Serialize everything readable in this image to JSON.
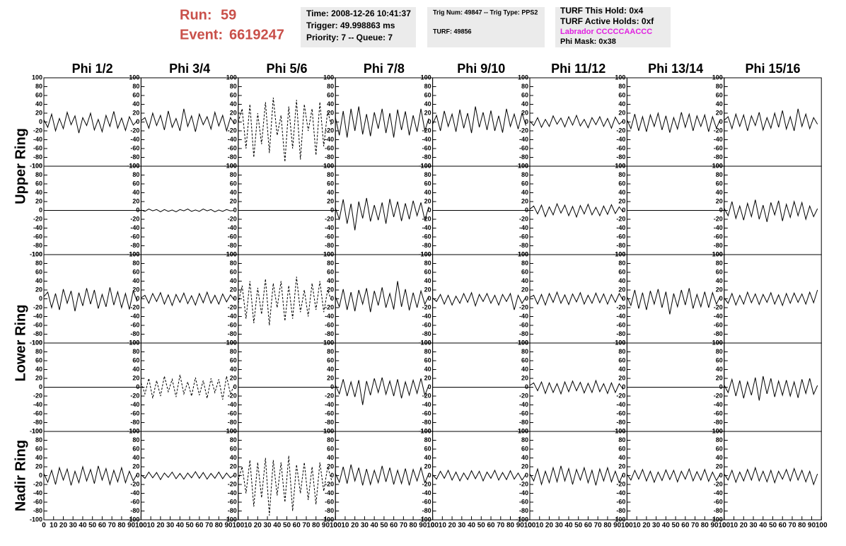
{
  "header": {
    "run_label": "Run:",
    "run": "59",
    "event_label": "Event:",
    "event": "6619247",
    "box1": [
      "Time: 2008-12-26 10:41:37",
      "Trigger: 49.998863 ms",
      "Priority: 7 -- Queue: 7"
    ],
    "box2": [
      "Trig Num: 49847 -- Trig Type: PPS2",
      "TURF: 49856"
    ],
    "box3": [
      "TURF This Hold: 0x4",
      "TURF Active Holds: 0xf",
      "Labrador CCCCCAACCC",
      "Phi Mask: 0x38"
    ]
  },
  "chart_data": {
    "type": "line",
    "column_titles": [
      "Phi 1/2",
      "Phi 3/4",
      "Phi 5/6",
      "Phi 7/8",
      "Phi 9/10",
      "Phi 11/12",
      "Phi 13/14",
      "Phi 15/16"
    ],
    "row_titles": [
      "Upper Ring",
      "Lower Ring",
      "Nadir Ring"
    ],
    "xlim": [
      0,
      100
    ],
    "ylim": [
      -100,
      100
    ],
    "xticks": [
      0,
      10,
      20,
      30,
      40,
      50,
      60,
      70,
      80,
      90,
      100
    ],
    "yticks": [
      -100,
      -80,
      -60,
      -40,
      -20,
      0,
      20,
      40,
      60,
      80,
      100
    ],
    "x": [
      0,
      4,
      8,
      12,
      16,
      20,
      24,
      28,
      32,
      36,
      40,
      44,
      48,
      52,
      56,
      60,
      64,
      68,
      72,
      76,
      80,
      84,
      88,
      92,
      96
    ],
    "panels": [
      {
        "dashed": false,
        "values": [
          5,
          -12,
          18,
          -20,
          8,
          -15,
          22,
          -6,
          14,
          -25,
          10,
          -8,
          20,
          -18,
          6,
          -22,
          15,
          -10,
          24,
          -14,
          9,
          -19,
          12,
          -7,
          3
        ]
      },
      {
        "dashed": false,
        "values": [
          3,
          10,
          -14,
          20,
          -8,
          15,
          -18,
          25,
          -12,
          8,
          -20,
          30,
          -10,
          14,
          -22,
          18,
          -6,
          12,
          -16,
          22,
          -9,
          15,
          -20,
          10,
          -5
        ]
      },
      {
        "dashed": true,
        "values": [
          0,
          30,
          -60,
          40,
          -80,
          20,
          -50,
          45,
          -70,
          55,
          -30,
          15,
          -90,
          35,
          -60,
          50,
          -85,
          40,
          -20,
          30,
          -75,
          45,
          -55,
          25,
          -10
        ]
      },
      {
        "dashed": false,
        "values": [
          10,
          -30,
          25,
          -35,
          30,
          -20,
          35,
          -28,
          18,
          -32,
          22,
          -15,
          30,
          -25,
          20,
          -35,
          28,
          -18,
          24,
          -30,
          15,
          -22,
          30,
          -20,
          8
        ]
      },
      {
        "dashed": false,
        "values": [
          -5,
          15,
          -20,
          25,
          -10,
          18,
          -22,
          28,
          -14,
          20,
          -25,
          35,
          -12,
          22,
          -18,
          26,
          -20,
          14,
          -24,
          30,
          -10,
          18,
          -16,
          20,
          -8
        ]
      },
      {
        "dashed": false,
        "values": [
          2,
          -8,
          10,
          -12,
          6,
          -10,
          14,
          -5,
          9,
          -11,
          12,
          -7,
          15,
          -9,
          6,
          -13,
          10,
          -6,
          12,
          -10,
          8,
          -14,
          11,
          -5,
          3
        ]
      },
      {
        "dashed": false,
        "values": [
          5,
          -15,
          18,
          -20,
          12,
          -22,
          16,
          -10,
          20,
          -18,
          14,
          -24,
          10,
          -16,
          22,
          -12,
          18,
          -20,
          14,
          -10,
          16,
          -22,
          12,
          -14,
          6
        ]
      },
      {
        "dashed": false,
        "values": [
          4,
          12,
          -15,
          18,
          -10,
          16,
          -20,
          14,
          -8,
          22,
          -18,
          10,
          -14,
          20,
          -12,
          26,
          -16,
          12,
          -20,
          30,
          -10,
          18,
          -15,
          10,
          -5
        ]
      },
      {
        "dashed": false,
        "values": []
      },
      {
        "dashed": false,
        "values": [
          1,
          -2,
          3,
          -1,
          2,
          -3,
          2,
          -2,
          1,
          -3,
          2,
          -1,
          3,
          -2,
          1,
          -2,
          3,
          -1,
          2,
          -3,
          1,
          -2,
          2,
          -1,
          0
        ]
      },
      {
        "dashed": false,
        "values": []
      },
      {
        "dashed": false,
        "values": [
          5,
          -20,
          25,
          -30,
          15,
          -45,
          20,
          -18,
          28,
          -25,
          12,
          -22,
          18,
          -30,
          26,
          -15,
          20,
          -24,
          16,
          -20,
          22,
          -12,
          18,
          -22,
          8
        ]
      },
      {
        "dashed": false,
        "values": []
      },
      {
        "dashed": false,
        "values": [
          3,
          10,
          -8,
          12,
          -14,
          8,
          -10,
          15,
          -6,
          12,
          -12,
          9,
          -15,
          11,
          -8,
          14,
          -10,
          7,
          -12,
          10,
          -9,
          13,
          -7,
          8,
          -4
        ]
      },
      {
        "dashed": false,
        "values": []
      },
      {
        "dashed": false,
        "values": [
          5,
          -12,
          20,
          -18,
          10,
          -22,
          16,
          -14,
          24,
          -20,
          12,
          -26,
          18,
          -10,
          22,
          -24,
          14,
          -16,
          20,
          -12,
          18,
          -20,
          10,
          -14,
          4
        ]
      },
      {
        "dashed": false,
        "values": [
          5,
          15,
          -20,
          12,
          -25,
          22,
          -10,
          18,
          -28,
          14,
          -16,
          24,
          -12,
          20,
          -22,
          10,
          -18,
          26,
          -14,
          16,
          -20,
          12,
          -24,
          18,
          -6
        ]
      },
      {
        "dashed": false,
        "values": [
          2,
          8,
          -10,
          12,
          -6,
          14,
          -12,
          9,
          -15,
          10,
          -8,
          13,
          -11,
          7,
          -14,
          12,
          -9,
          15,
          -10,
          8,
          -12,
          11,
          -7,
          9,
          -3
        ]
      },
      {
        "dashed": true,
        "values": [
          -10,
          30,
          -45,
          40,
          -55,
          25,
          -35,
          45,
          -60,
          35,
          -20,
          40,
          -50,
          30,
          -45,
          50,
          -30,
          20,
          -40,
          35,
          -25,
          40,
          -30,
          20,
          -5
        ]
      },
      {
        "dashed": false,
        "values": [
          5,
          -18,
          22,
          -25,
          15,
          -28,
          20,
          -12,
          24,
          -30,
          18,
          -15,
          26,
          -20,
          12,
          -24,
          40,
          -18,
          22,
          -26,
          14,
          -20,
          18,
          -12,
          6
        ]
      },
      {
        "dashed": false,
        "values": [
          2,
          -6,
          10,
          -12,
          8,
          -14,
          6,
          -10,
          12,
          -8,
          14,
          -16,
          10,
          -6,
          12,
          -10,
          8,
          -14,
          10,
          -6,
          12,
          -25,
          8,
          -10,
          4
        ]
      },
      {
        "dashed": false,
        "values": [
          3,
          8,
          -12,
          10,
          -14,
          12,
          -8,
          15,
          -10,
          9,
          -13,
          11,
          -7,
          14,
          -12,
          8,
          -10,
          13,
          -9,
          11,
          -12,
          10,
          -8,
          12,
          -4
        ]
      },
      {
        "dashed": false,
        "values": [
          5,
          -15,
          20,
          -22,
          14,
          -25,
          18,
          -12,
          22,
          -20,
          16,
          -35,
          12,
          -18,
          20,
          -14,
          24,
          -22,
          10,
          -18,
          16,
          -20,
          14,
          -12,
          6
        ]
      },
      {
        "dashed": false,
        "values": [
          2,
          -10,
          12,
          -14,
          8,
          -12,
          15,
          -9,
          11,
          -13,
          10,
          -8,
          14,
          -12,
          9,
          -15,
          12,
          -10,
          13,
          -8,
          11,
          -12,
          15,
          -9,
          20
        ]
      },
      {
        "dashed": false,
        "values": []
      },
      {
        "dashed": true,
        "values": [
          10,
          -15,
          20,
          -25,
          15,
          -20,
          25,
          -10,
          18,
          -22,
          28,
          -15,
          12,
          -20,
          22,
          -18,
          15,
          -25,
          20,
          -12,
          18,
          -28,
          25,
          -15,
          5
        ]
      },
      {
        "dashed": false,
        "values": []
      },
      {
        "dashed": false,
        "values": [
          5,
          -15,
          18,
          -20,
          12,
          -22,
          16,
          -40,
          14,
          -18,
          20,
          -12,
          22,
          -16,
          14,
          -20,
          18,
          -25,
          12,
          -18,
          16,
          -14,
          20,
          -18,
          4
        ]
      },
      {
        "dashed": false,
        "values": []
      },
      {
        "dashed": false,
        "values": [
          4,
          10,
          -8,
          12,
          -14,
          10,
          -12,
          8,
          -15,
          12,
          -10,
          14,
          -8,
          11,
          -13,
          9,
          -12,
          15,
          -10,
          8,
          -14,
          10,
          -12,
          8,
          -5
        ]
      },
      {
        "dashed": false,
        "values": []
      },
      {
        "dashed": false,
        "values": [
          5,
          -12,
          18,
          -20,
          15,
          -25,
          12,
          -18,
          22,
          -30,
          25,
          -15,
          20,
          -22,
          14,
          -18,
          16,
          -20,
          12,
          -24,
          18,
          -14,
          20,
          -16,
          4
        ]
      },
      {
        "dashed": false,
        "values": [
          5,
          -15,
          12,
          -20,
          18,
          -10,
          15,
          -22,
          10,
          -16,
          20,
          -12,
          14,
          -18,
          22,
          -10,
          16,
          -20,
          12,
          -14,
          18,
          -16,
          10,
          -12,
          4
        ]
      },
      {
        "dashed": false,
        "values": [
          2,
          -6,
          8,
          -5,
          7,
          -9,
          6,
          -4,
          8,
          -7,
          5,
          -8,
          6,
          -5,
          9,
          -6,
          7,
          -8,
          5,
          -6,
          8,
          -7,
          6,
          -5,
          2
        ]
      },
      {
        "dashed": true,
        "values": [
          -10,
          20,
          -40,
          35,
          -70,
          30,
          -50,
          40,
          -90,
          35,
          -45,
          30,
          -60,
          45,
          -80,
          25,
          -40,
          30,
          -55,
          20,
          -65,
          30,
          -35,
          20,
          -10
        ]
      },
      {
        "dashed": false,
        "values": [
          5,
          -15,
          20,
          -18,
          25,
          -12,
          18,
          -22,
          15,
          -20,
          12,
          -16,
          22,
          -14,
          18,
          -20,
          12,
          -18,
          16,
          -22,
          14,
          -12,
          18,
          -16,
          4
        ]
      },
      {
        "dashed": false,
        "values": [
          2,
          -8,
          10,
          -6,
          12,
          -10,
          8,
          -12,
          6,
          -9,
          11,
          -7,
          10,
          -12,
          8,
          -6,
          12,
          -10,
          7,
          -9,
          11,
          -8,
          6,
          -10,
          3
        ]
      },
      {
        "dashed": false,
        "values": [
          4,
          -12,
          15,
          -20,
          10,
          -16,
          18,
          -14,
          22,
          -12,
          16,
          -20,
          14,
          -10,
          18,
          -16,
          12,
          -22,
          15,
          -12,
          18,
          -14,
          10,
          -16,
          5
        ]
      },
      {
        "dashed": false,
        "values": [
          3,
          -10,
          12,
          -8,
          14,
          -12,
          10,
          -15,
          8,
          -11,
          13,
          -9,
          12,
          -14,
          10,
          -8,
          15,
          -12,
          9,
          -10,
          14,
          -13,
          8,
          -11,
          4
        ]
      },
      {
        "dashed": false,
        "values": [
          4,
          -10,
          12,
          -15,
          8,
          -12,
          14,
          -10,
          18,
          -12,
          10,
          -14,
          12,
          -16,
          10,
          -8,
          14,
          -12,
          16,
          -10,
          12,
          -14,
          10,
          -20,
          4
        ]
      }
    ]
  }
}
